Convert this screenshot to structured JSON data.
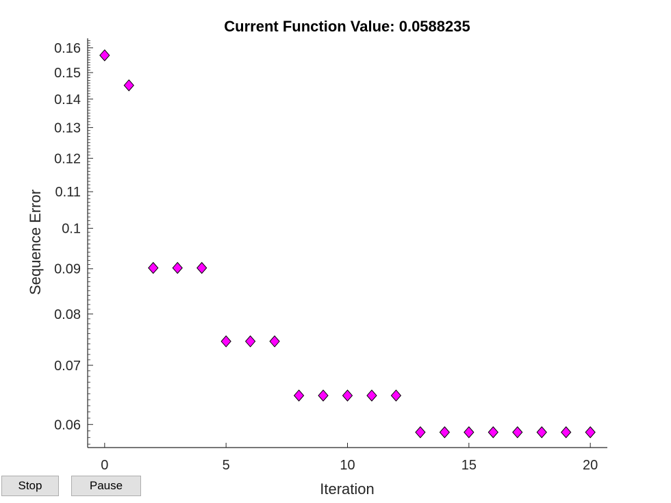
{
  "buttons": {
    "stop_label": "Stop",
    "pause_label": "Pause"
  },
  "chart_data": {
    "type": "scatter",
    "title": "Current Function Value: 0.0588235",
    "xlabel": "Iteration",
    "ylabel": "Sequence Error",
    "y_scale": "log",
    "xlim": [
      -0.7,
      20.7
    ],
    "ylim": [
      0.0565,
      0.164
    ],
    "xticks": [
      0,
      5,
      10,
      15,
      20
    ],
    "yticks": [
      0.06,
      0.07,
      0.08,
      0.09,
      0.1,
      0.11,
      0.12,
      0.13,
      0.14,
      0.15,
      0.16
    ],
    "ytick_labels": [
      "0.06",
      "0.07",
      "0.08",
      "0.09",
      "0.1",
      "0.11",
      "0.12",
      "0.13",
      "0.14",
      "0.15",
      "0.16"
    ],
    "grid": false,
    "marker": "diamond",
    "marker_color": "#ff00ff",
    "marker_edge_color": "#000000",
    "x": [
      0,
      1,
      2,
      3,
      4,
      5,
      6,
      7,
      8,
      9,
      10,
      11,
      12,
      13,
      14,
      15,
      16,
      17,
      18,
      19,
      20
    ],
    "y": [
      0.1569,
      0.1451,
      0.0902,
      0.0902,
      0.0902,
      0.0745,
      0.0745,
      0.0745,
      0.0647,
      0.0647,
      0.0647,
      0.0647,
      0.0647,
      0.0588,
      0.0588,
      0.0588,
      0.0588,
      0.0588,
      0.0588,
      0.0588,
      0.0588
    ]
  }
}
